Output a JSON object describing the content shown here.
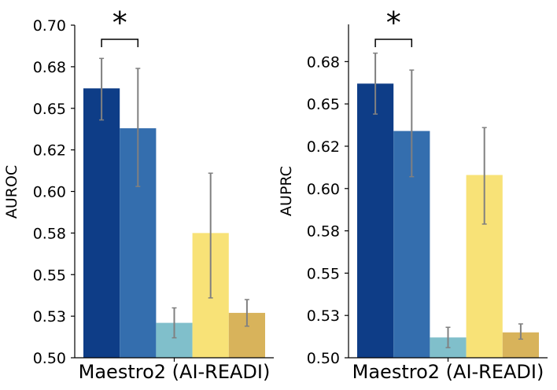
{
  "chart_data": [
    {
      "type": "bar",
      "category": "Maestro2 (AI-READI)",
      "ylabel": "AUROC",
      "ylim": [
        0.5,
        0.7
      ],
      "yticks": [
        "0.50",
        "0.53",
        "0.55",
        "0.58",
        "0.60",
        "0.62",
        "0.65",
        "0.68",
        "0.70"
      ],
      "ytick_values": [
        0.5,
        0.525,
        0.55,
        0.575,
        0.6,
        0.625,
        0.65,
        0.675,
        0.7
      ],
      "bars": [
        {
          "value": 0.662,
          "err_low": 0.643,
          "err_high": 0.68,
          "color": "#0e3d87"
        },
        {
          "value": 0.638,
          "err_low": 0.603,
          "err_high": 0.674,
          "color": "#346eae"
        },
        {
          "value": 0.521,
          "err_low": 0.512,
          "err_high": 0.53,
          "color": "#80bfcb"
        },
        {
          "value": 0.575,
          "err_low": 0.536,
          "err_high": 0.611,
          "color": "#f8e277"
        },
        {
          "value": 0.527,
          "err_low": 0.519,
          "err_high": 0.535,
          "color": "#d8b35b"
        }
      ],
      "significance": {
        "label": "*",
        "between": [
          0,
          1
        ]
      }
    },
    {
      "type": "bar",
      "category": "Maestro2 (AI-READI)",
      "ylabel": "AUPRC",
      "ylim": [
        0.5,
        0.697
      ],
      "yticks": [
        "0.50",
        "0.53",
        "0.55",
        "0.58",
        "0.60",
        "0.62",
        "0.65",
        "0.68"
      ],
      "ytick_values": [
        0.5,
        0.525,
        0.55,
        0.575,
        0.6,
        0.625,
        0.65,
        0.675
      ],
      "bars": [
        {
          "value": 0.662,
          "err_low": 0.644,
          "err_high": 0.68,
          "color": "#0e3d87"
        },
        {
          "value": 0.634,
          "err_low": 0.607,
          "err_high": 0.67,
          "color": "#346eae"
        },
        {
          "value": 0.512,
          "err_low": 0.506,
          "err_high": 0.518,
          "color": "#80bfcb"
        },
        {
          "value": 0.608,
          "err_low": 0.579,
          "err_high": 0.636,
          "color": "#f8e277"
        },
        {
          "value": 0.515,
          "err_low": 0.511,
          "err_high": 0.52,
          "color": "#d8b35b"
        }
      ],
      "significance": {
        "label": "*",
        "between": [
          0,
          1
        ]
      }
    }
  ]
}
